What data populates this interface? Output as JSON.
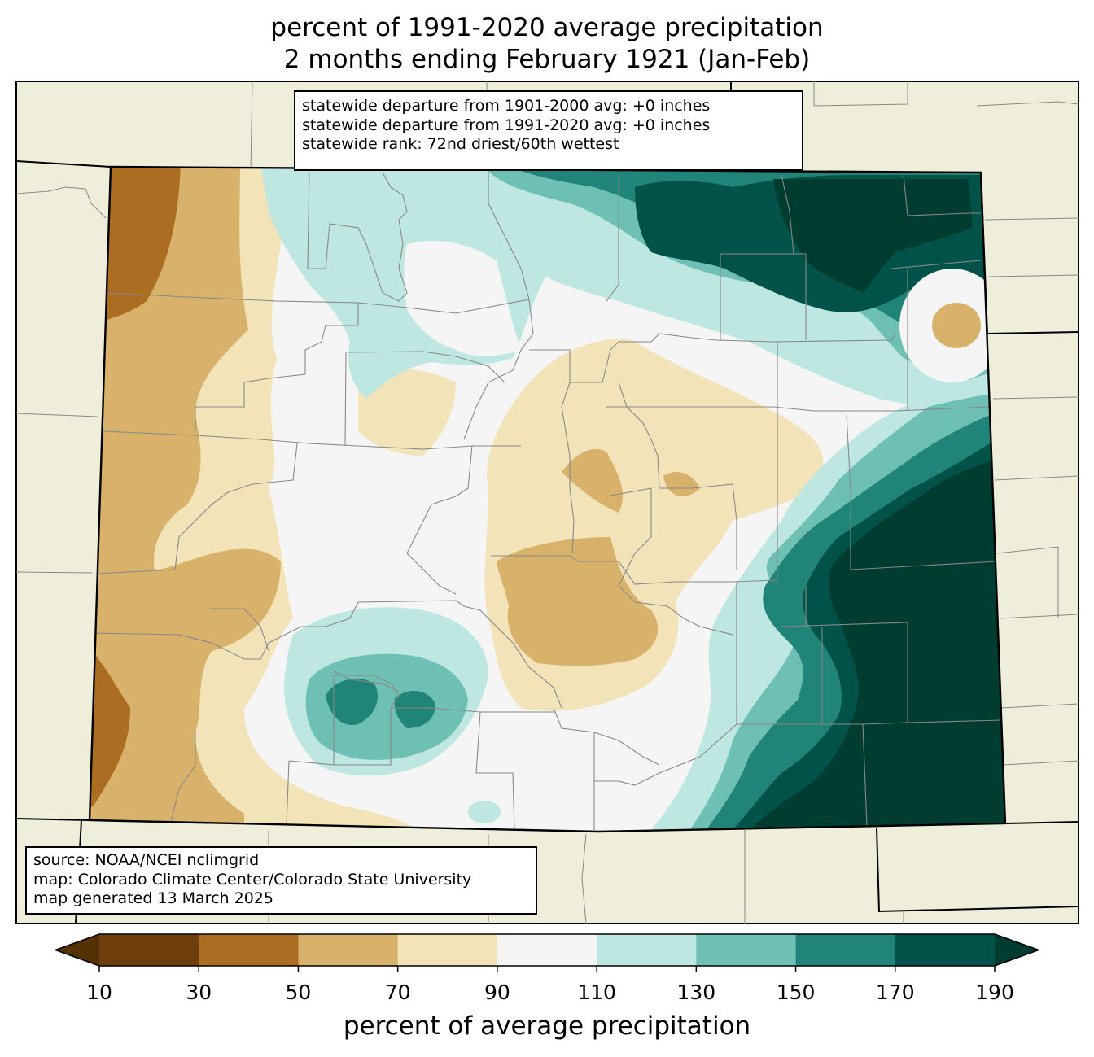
{
  "title": {
    "line1": "percent of 1991-2020 average precipitation",
    "line2": "2 months ending February 1921 (Jan-Feb)"
  },
  "stats_box": {
    "line1": "statewide departure from 1901-2000 avg: +0 inches",
    "line2": "statewide departure from 1991-2020 avg: +0 inches",
    "line3": "statewide rank: 72nd driest/60th wettest"
  },
  "credits_box": {
    "line1": "source: NOAA/NCEI nclimgrid",
    "line2": "map: Colorado Climate Center/Colorado State University",
    "line3": "map generated 13 March 2025"
  },
  "colorbar": {
    "label": "percent of average precipitation",
    "ticks": [
      "10",
      "30",
      "50",
      "70",
      "90",
      "110",
      "130",
      "150",
      "170",
      "190"
    ],
    "bins": [
      {
        "range": "<10",
        "color": "#543005"
      },
      {
        "range": "10-30",
        "color": "#6e3e0c"
      },
      {
        "range": "30-50",
        "color": "#ab6d22"
      },
      {
        "range": "50-70",
        "color": "#d8b26a"
      },
      {
        "range": "70-90",
        "color": "#f3e3b9"
      },
      {
        "range": "90-110",
        "color": "#f4f5f4"
      },
      {
        "range": "110-130",
        "color": "#bde7e0"
      },
      {
        "range": "130-150",
        "color": "#6fc0b4"
      },
      {
        "range": "150-170",
        "color": "#218479"
      },
      {
        "range": "170-190",
        "color": "#01534a"
      },
      {
        "range": ">190",
        "color": "#003c30"
      }
    ]
  },
  "map_colors": {
    "background_land": "#efeedb",
    "state_border": "#000000",
    "county_border": "#888888"
  }
}
